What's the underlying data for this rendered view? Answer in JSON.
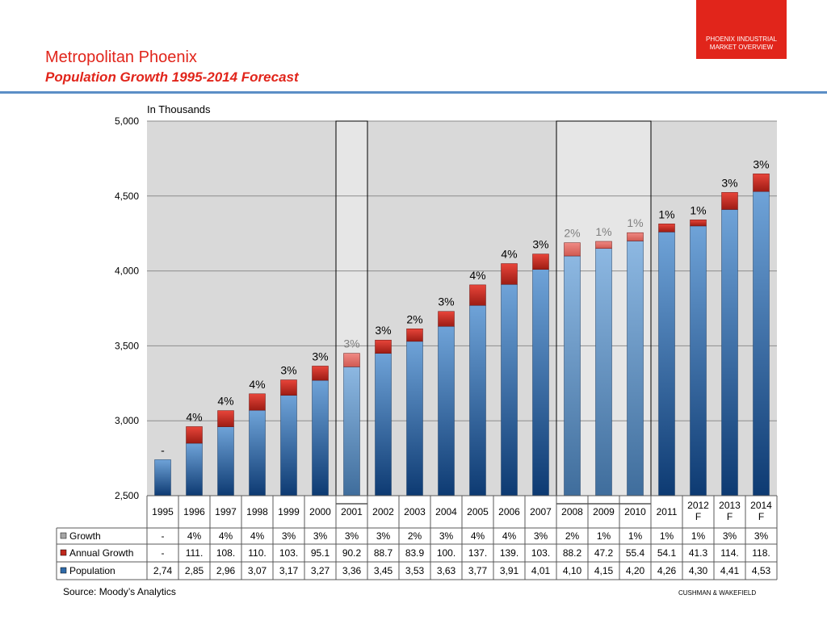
{
  "header": {
    "title": "Metropolitan Phoenix",
    "subtitle": "Population Growth 1995-2014 Forecast",
    "badge_line1": "PHOENIX IINDUSTRIAL",
    "badge_line2": "MARKET OVERVIEW"
  },
  "footer": {
    "source": "Source: Moody’s Analytics",
    "company": "CUSHMAN & WAKEFIELD"
  },
  "colors": {
    "accent": "#e1251b",
    "population": "#2f6aa8",
    "annual_growth": "#c0281e",
    "growth": "#a6a6a6",
    "plot_bg": "#d9d9d9"
  },
  "chart_data": {
    "type": "bar",
    "stacked": true,
    "unit_label": "In Thousands",
    "ylim": [
      2500,
      5000
    ],
    "yticks": [
      "2,500",
      "3,000",
      "3,500",
      "4,000",
      "4,500",
      "5,000"
    ],
    "grid": true,
    "categories": [
      "1995",
      "1996",
      "1997",
      "1998",
      "1999",
      "2000",
      "2001",
      "2002",
      "2003",
      "2004",
      "2005",
      "2006",
      "2007",
      "2008",
      "2009",
      "2010",
      "2011",
      "2012\nF",
      "2013\nF",
      "2014\nF"
    ],
    "highlighted_categories": [
      "2001",
      "2008",
      "2009",
      "2010"
    ],
    "series": [
      {
        "name": "Population",
        "values": [
          2740,
          2850,
          2960,
          3070,
          3170,
          3270,
          3360,
          3450,
          3530,
          3630,
          3770,
          3910,
          4010,
          4100,
          4150,
          4200,
          4260,
          4300,
          4410,
          4530
        ],
        "table_labels": [
          "2,74",
          "2,85",
          "2,96",
          "3,07",
          "3,17",
          "3,27",
          "3,36",
          "3,45",
          "3,53",
          "3,63",
          "3,77",
          "3,91",
          "4,01",
          "4,10",
          "4,15",
          "4,20",
          "4,26",
          "4,30",
          "4,41",
          "4,53"
        ]
      },
      {
        "name": "Annual Growth",
        "values": [
          0,
          111,
          108,
          110,
          103,
          95.1,
          90.2,
          88.7,
          83.9,
          100,
          137,
          139,
          103,
          88.2,
          47.2,
          55.4,
          54.1,
          41.3,
          114,
          118
        ],
        "table_labels": [
          "-",
          "111.",
          "108.",
          "110.",
          "103.",
          "95.1",
          "90.2",
          "88.7",
          "83.9",
          "100.",
          "137.",
          "139.",
          "103.",
          "88.2",
          "47.2",
          "55.4",
          "54.1",
          "41.3",
          "114.",
          "118."
        ]
      },
      {
        "name": "Growth",
        "table_labels": [
          "-",
          "4%",
          "4%",
          "4%",
          "3%",
          "3%",
          "3%",
          "3%",
          "2%",
          "3%",
          "4%",
          "4%",
          "3%",
          "2%",
          "1%",
          "1%",
          "1%",
          "1%",
          "3%",
          "3%"
        ]
      }
    ]
  }
}
